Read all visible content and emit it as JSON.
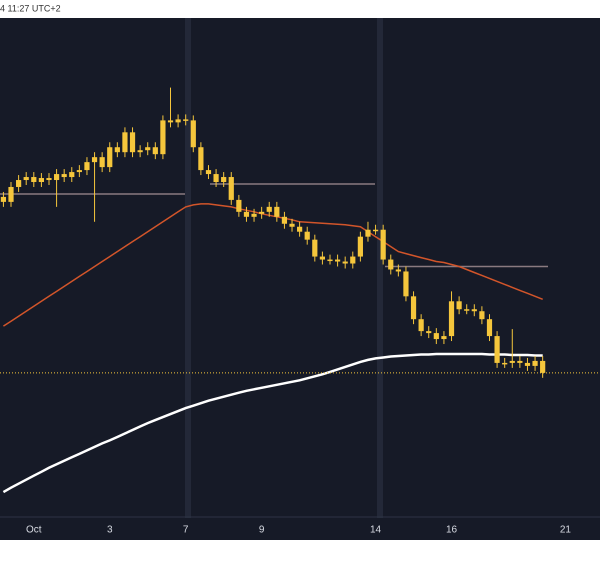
{
  "chart_data": {
    "type": "candlestick",
    "timestamp": "4 11:27 UTC+2",
    "categories": [
      null,
      null,
      null,
      null,
      "Oct",
      null,
      null,
      null,
      null,
      null,
      null,
      null,
      null,
      null,
      "3",
      null,
      null,
      null,
      null,
      null,
      null,
      null,
      null,
      null,
      "7",
      null,
      null,
      null,
      null,
      null,
      null,
      null,
      null,
      null,
      "9",
      null,
      null,
      null,
      null,
      null,
      null,
      null,
      null,
      null,
      null,
      null,
      null,
      null,
      null,
      "14",
      null,
      null,
      null,
      null,
      null,
      null,
      null,
      null,
      null,
      "16",
      null,
      null,
      null,
      null,
      null,
      null,
      null,
      null,
      null,
      null,
      null,
      null,
      null,
      null,
      "21",
      null,
      null,
      null,
      null
    ],
    "open": [
      64,
      63,
      66,
      67.4,
      68,
      67,
      67.8,
      67.4,
      68.6,
      68,
      69,
      69.4,
      71,
      72,
      70,
      74,
      73,
      77,
      73,
      73.4,
      74,
      72.6,
      79.4,
      79,
      79.6,
      79.4,
      74,
      69.4,
      68.6,
      67,
      68,
      63.4,
      61,
      60,
      60.6,
      61,
      62,
      60,
      58.6,
      58,
      57,
      55.4,
      52,
      51.4,
      51.4,
      51,
      50.6,
      52,
      56,
      57.4,
      57.4,
      51.4,
      49.4,
      49,
      44,
      39.4,
      37,
      36.6,
      35.4,
      36,
      43,
      41.4,
      41.4,
      41,
      39.4,
      36,
      30.6,
      30.6,
      31,
      30.6,
      30,
      31,
      null,
      null,
      null,
      null,
      null,
      null,
      null
    ],
    "high": [
      65,
      67,
      68.4,
      69,
      69,
      68.8,
      68.8,
      69.6,
      69.6,
      70,
      70.4,
      72,
      73,
      73,
      75,
      75,
      78,
      78,
      74.4,
      75,
      75,
      80.4,
      86,
      80.6,
      80.6,
      80.4,
      75,
      70.4,
      69.6,
      69,
      69,
      64.4,
      62,
      61.6,
      62,
      63,
      63,
      61,
      59.6,
      59,
      58,
      56.4,
      53,
      52.4,
      52.4,
      52,
      53,
      57,
      59,
      58.4,
      58.4,
      52.4,
      50.4,
      50,
      45,
      40.4,
      38,
      37.6,
      37,
      45,
      44,
      42.4,
      42.4,
      42,
      40.4,
      37,
      31.6,
      37.4,
      32,
      31.6,
      32,
      32,
      null,
      null,
      null,
      null,
      null,
      null,
      null
    ],
    "low": [
      62,
      62,
      65,
      66.4,
      66,
      66,
      66.4,
      62,
      67,
      67,
      68,
      68.4,
      59,
      69,
      69,
      72,
      72,
      72,
      72,
      72.4,
      71.6,
      71.6,
      78,
      78,
      78.4,
      73,
      68.4,
      67.6,
      66,
      66,
      62.4,
      60,
      59,
      59,
      59.6,
      60,
      59,
      57.6,
      57,
      56,
      54.4,
      51,
      50.4,
      50.4,
      50,
      49.6,
      49.6,
      51,
      55,
      56.4,
      50.4,
      48.4,
      48,
      43,
      38.4,
      36,
      35.6,
      34.4,
      34.4,
      35,
      40.4,
      40.4,
      40,
      38.4,
      35,
      29.6,
      29.6,
      29.6,
      29.6,
      29,
      29,
      27.6,
      null,
      null,
      null,
      null,
      null,
      null,
      null
    ],
    "close": [
      63,
      66,
      67.4,
      68,
      67,
      67.8,
      67.4,
      68.6,
      68,
      69,
      69.4,
      71,
      72,
      70,
      74,
      73,
      77,
      73,
      73.4,
      74,
      72.6,
      79.4,
      79,
      79.6,
      79.4,
      74,
      69.4,
      68.6,
      67,
      68,
      63.4,
      61,
      60,
      60.6,
      61,
      62,
      60,
      58.6,
      58,
      57,
      55.4,
      52,
      51.4,
      51.4,
      51,
      50.6,
      52,
      56,
      57.4,
      57.4,
      51.4,
      49.4,
      49,
      44,
      39.4,
      37,
      36.6,
      35.4,
      36,
      43,
      41.4,
      41.4,
      41,
      39.4,
      36,
      30.6,
      30.6,
      31,
      30.6,
      30,
      31,
      28.6,
      null,
      null,
      null,
      null,
      null,
      null,
      null
    ],
    "candle_color": "#f5c63c",
    "series": [
      {
        "color": "#d2552a",
        "values": [
          38,
          39,
          40,
          41,
          42,
          43,
          44,
          45,
          46,
          47,
          48,
          49,
          50,
          51,
          52,
          53,
          54,
          55,
          56,
          57,
          58,
          59,
          60,
          61,
          62,
          62.4,
          62.6,
          62.6,
          62.4,
          62.2,
          62,
          61.6,
          61.3,
          61,
          60.6,
          60.3,
          60,
          59.7,
          59.4,
          59,
          58.9,
          58.8,
          58.7,
          58.6,
          58.5,
          58.4,
          58.2,
          58,
          57,
          56,
          55,
          54,
          53,
          52.6,
          52.2,
          51.8,
          51.4,
          51,
          50.8,
          50.4,
          50,
          49.4,
          48.8,
          48.2,
          47.6,
          47,
          46.4,
          45.8,
          45.2,
          44.6,
          44,
          43.4,
          null,
          null,
          null,
          null,
          null,
          null,
          null
        ]
      },
      {
        "color": "#ffffff",
        "values": [
          4.6,
          5.5,
          6.3,
          7.1,
          7.9,
          8.7,
          9.5,
          10.2,
          10.9,
          11.6,
          12.3,
          13,
          13.7,
          14.4,
          15,
          15.7,
          16.4,
          17.1,
          17.8,
          18.5,
          19.1,
          19.7,
          20.3,
          20.9,
          21.5,
          22,
          22.5,
          23,
          23.4,
          23.8,
          24.2,
          24.6,
          25,
          25.3,
          25.6,
          25.9,
          26.2,
          26.5,
          26.8,
          27.1,
          27.5,
          27.9,
          28.3,
          28.8,
          29.3,
          29.8,
          30.3,
          30.8,
          31.2,
          31.5,
          31.7,
          31.9,
          32,
          32.1,
          32.2,
          32.3,
          32.3,
          32.4,
          32.4,
          32.4,
          32.4,
          32.4,
          32.4,
          32.4,
          32.3,
          32.3,
          32.3,
          32.2,
          32.2,
          32.2,
          32.1,
          32.1,
          null,
          null,
          null,
          null,
          null,
          null,
          null
        ]
      }
    ],
    "levels": [
      64.6,
      66.6,
      50
    ],
    "level_color": "#8a7a80",
    "ylim": [
      0,
      100
    ]
  }
}
